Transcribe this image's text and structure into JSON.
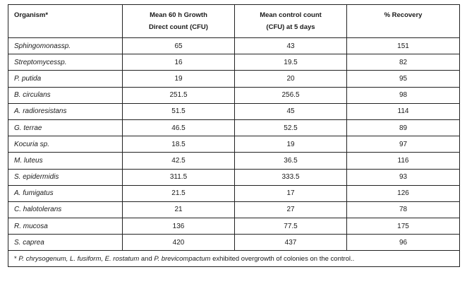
{
  "headers": {
    "organism": "Organism*",
    "growth_line1": "Mean 60 h Growth",
    "growth_line2": "Direct count (CFU)",
    "control_line1": "Mean control count",
    "control_line2": "(CFU) at 5 days",
    "recovery": "% Recovery"
  },
  "rows": [
    {
      "organism": "Sphingomonas",
      "suffix": "sp.",
      "growth": "65",
      "control": "43",
      "recovery": "151"
    },
    {
      "organism": "Streptomyces",
      "suffix": "sp.",
      "growth": "16",
      "control": "19.5",
      "recovery": "82"
    },
    {
      "organism": "P. putida",
      "suffix": "",
      "growth": "19",
      "control": "20",
      "recovery": "95"
    },
    {
      "organism": "B. circulans",
      "suffix": "",
      "growth": "251.5",
      "control": "256.5",
      "recovery": "98"
    },
    {
      "organism": "A. radioresistans",
      "suffix": "",
      "growth": "51.5",
      "control": "45",
      "recovery": "114"
    },
    {
      "organism": "G. terrae",
      "suffix": "",
      "growth": "46.5",
      "control": "52.5",
      "recovery": "89"
    },
    {
      "organism": "Kocuria",
      "suffix": " sp.",
      "growth": "18.5",
      "control": "19",
      "recovery": "97"
    },
    {
      "organism": "M. luteus",
      "suffix": "",
      "growth": "42.5",
      "control": "36.5",
      "recovery": "116"
    },
    {
      "organism": "S. epidermidis",
      "suffix": "",
      "growth": "311.5",
      "control": "333.5",
      "recovery": "93"
    },
    {
      "organism": "A. fumigatus",
      "suffix": "",
      "growth": "21.5",
      "control": "17",
      "recovery": "126"
    },
    {
      "organism": "C. halotolerans",
      "suffix": "",
      "growth": "21",
      "control": "27",
      "recovery": "78"
    },
    {
      "organism": "R. mucosa",
      "suffix": "",
      "growth": "136",
      "control": "77.5",
      "recovery": "175"
    },
    {
      "organism": "S. caprea",
      "suffix": "",
      "growth": "420",
      "control": "437",
      "recovery": "96"
    }
  ],
  "footnote": {
    "star": "* ",
    "species": "P. chrysogenum, L. fusiform, E. rostatum",
    "and": " and ",
    "species2": "P. brevicompactum",
    "rest": " exhibited overgrowth of colonies on the control.."
  }
}
